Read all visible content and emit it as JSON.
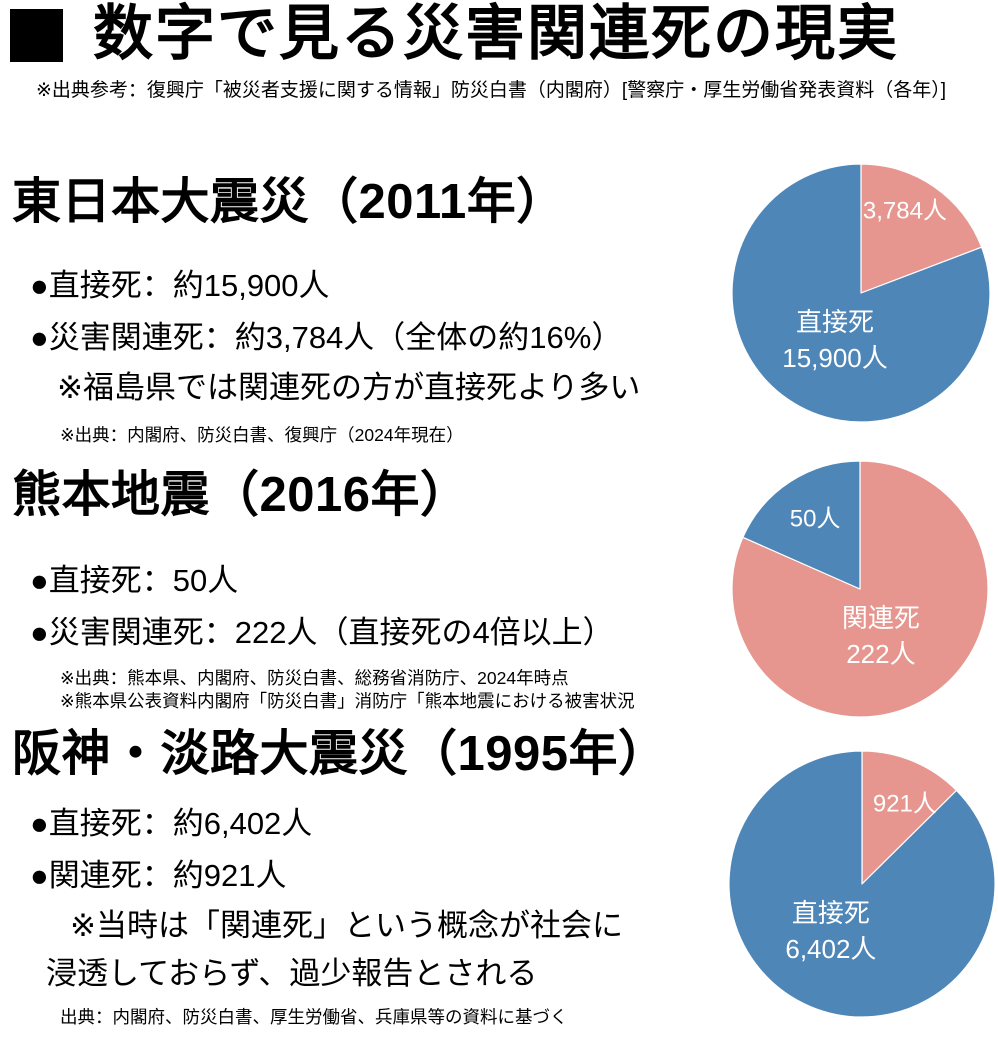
{
  "page": {
    "title": "数字で見る災害関連死の現実",
    "subtitle": "※出典参考：復興庁「被災者支援に関する情報」防災白書（内閣府）[警察庁・厚生労働省発表資料（各年）]"
  },
  "colors": {
    "direct_blue": "#4e86b8",
    "related_pink": "#e6968f",
    "text": "#000000",
    "pie_label_white": "#ffffff",
    "title_square": "#000000"
  },
  "sections": [
    {
      "heading": "東日本大震災（2011年）",
      "bullets": [
        "●直接死：約15,900人",
        "●災害関連死：約3,784人（全体の約16%）"
      ],
      "notes": [
        "※福島県では関連死の方が直接死より多い"
      ],
      "sources": [
        "※出典：内閣府、防災白書、復興庁（2024年現在）"
      ]
    },
    {
      "heading": "熊本地震（2016年）",
      "bullets": [
        "●直接死：50人",
        "●災害関連死：222人（直接死の4倍以上）"
      ],
      "notes": [],
      "sources": [
        "※出典：熊本県、内閣府、防災白書、総務省消防庁、2024年時点",
        "※熊本県公表資料内閣府「防災白書」消防庁「熊本地震における被害状況"
      ]
    },
    {
      "heading": "阪神・淡路大震災（1995年）",
      "bullets": [
        "●直接死：約6,402人",
        "●関連死：約921人"
      ],
      "notes": [
        "※当時は「関連死」という概念が社会に",
        "浸透しておらず、過少報告とされる"
      ],
      "sources": [
        "出典：内閣府、防災白書、厚生労働省、兵庫県等の資料に基づく"
      ]
    }
  ],
  "chart_data": [
    {
      "type": "pie",
      "title": "東日本大震災（2011年）",
      "unit": "人",
      "start_angle_deg": 0,
      "direction": "clockwise",
      "legend": false,
      "slices": [
        {
          "name": "災害関連死",
          "value": 3784,
          "label": "3,784人",
          "color": "#e6968f",
          "label_pos": [
            0.669,
            0.185
          ]
        },
        {
          "name": "直接死",
          "value": 15900,
          "label": "直接死\n15,900人",
          "color": "#4e86b8",
          "label_pos": [
            0.4,
            0.685
          ]
        }
      ]
    },
    {
      "type": "pie",
      "title": "熊本地震（2016年）",
      "unit": "人",
      "start_angle_deg": 0,
      "direction": "clockwise",
      "legend": false,
      "slices": [
        {
          "name": "関連死",
          "value": 222,
          "label": "関連死\n222人",
          "color": "#e6968f",
          "label_pos": [
            0.581,
            0.686
          ]
        },
        {
          "name": "直接死",
          "value": 50,
          "label": "50人",
          "color": "#4e86b8",
          "label_pos": [
            0.326,
            0.229
          ]
        }
      ]
    },
    {
      "type": "pie",
      "title": "阪神・淡路大震災（1995年）",
      "unit": "人",
      "start_angle_deg": 0,
      "direction": "clockwise",
      "legend": false,
      "slices": [
        {
          "name": "関連死",
          "value": 921,
          "label": "921人",
          "color": "#e6968f",
          "label_pos": [
            0.66,
            0.201
          ]
        },
        {
          "name": "直接死",
          "value": 6402,
          "label": "直接死\n6,402人",
          "color": "#4e86b8",
          "label_pos": [
            0.384,
            0.679
          ]
        }
      ]
    }
  ]
}
